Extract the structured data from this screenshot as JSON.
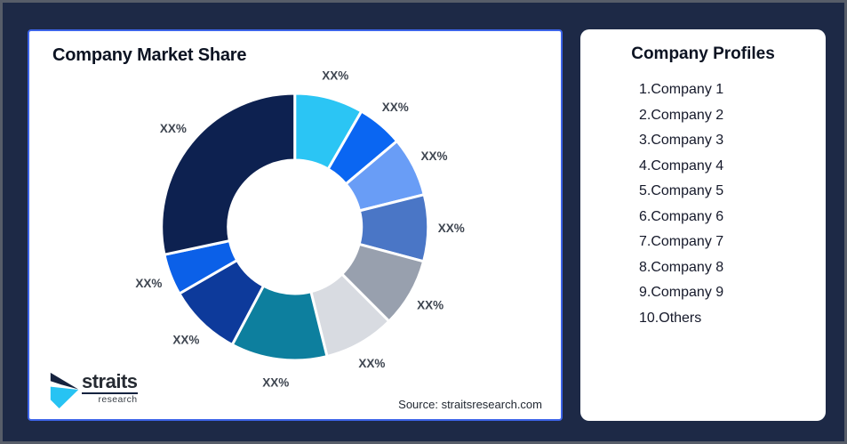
{
  "window": {
    "background": "#1d2946",
    "frame_border": "#575d69"
  },
  "chart_card": {
    "title": "Company Market Share",
    "source_text": "Source: straitsresearch.com",
    "border_color": "#3d64e8",
    "background": "#ffffff"
  },
  "logo": {
    "wordmark": "straits",
    "subtext": "research",
    "icon_navy": "#16233f",
    "icon_cyan": "#27c3f3"
  },
  "profiles_card": {
    "title": "Company Profiles",
    "background": "#ffffff",
    "items": [
      "1.Company 1",
      "2.Company 2",
      "3.Company 3",
      "4.Company 4",
      "5.Company 5",
      "6.Company 6",
      "7.Company 7",
      "8.Company 8",
      "9.Company 9",
      "10.Others"
    ]
  },
  "chart_data": {
    "type": "pie",
    "subtype": "donut",
    "title": "Company Market Share",
    "legend": "none",
    "start_angle_deg": 0,
    "direction": "clockwise",
    "segments": [
      {
        "label": "XX%",
        "color": "#2bc5f4",
        "angle_deg": 30,
        "value_pct": 8.3
      },
      {
        "label": "XX%",
        "color": "#0a66f2",
        "angle_deg": 20,
        "value_pct": 5.6
      },
      {
        "label": "XX%",
        "color": "#699df6",
        "angle_deg": 26,
        "value_pct": 7.2
      },
      {
        "label": "XX%",
        "color": "#4a76c6",
        "angle_deg": 29,
        "value_pct": 8.1
      },
      {
        "label": "XX%",
        "color": "#98a0ae",
        "angle_deg": 30,
        "value_pct": 8.3
      },
      {
        "label": "XX%",
        "color": "#d8dbe1",
        "angle_deg": 31,
        "value_pct": 8.6
      },
      {
        "label": "XX%",
        "color": "#0d7f9e",
        "angle_deg": 42,
        "value_pct": 11.7
      },
      {
        "label": "XX%",
        "color": "#0d3a9b",
        "angle_deg": 32,
        "value_pct": 8.9
      },
      {
        "label": "XX%",
        "color": "#0b60e8",
        "angle_deg": 18,
        "value_pct": 5.0
      },
      {
        "label": "XX%",
        "color": "#0d2150",
        "angle_deg": 102,
        "value_pct": 28.3
      }
    ]
  }
}
